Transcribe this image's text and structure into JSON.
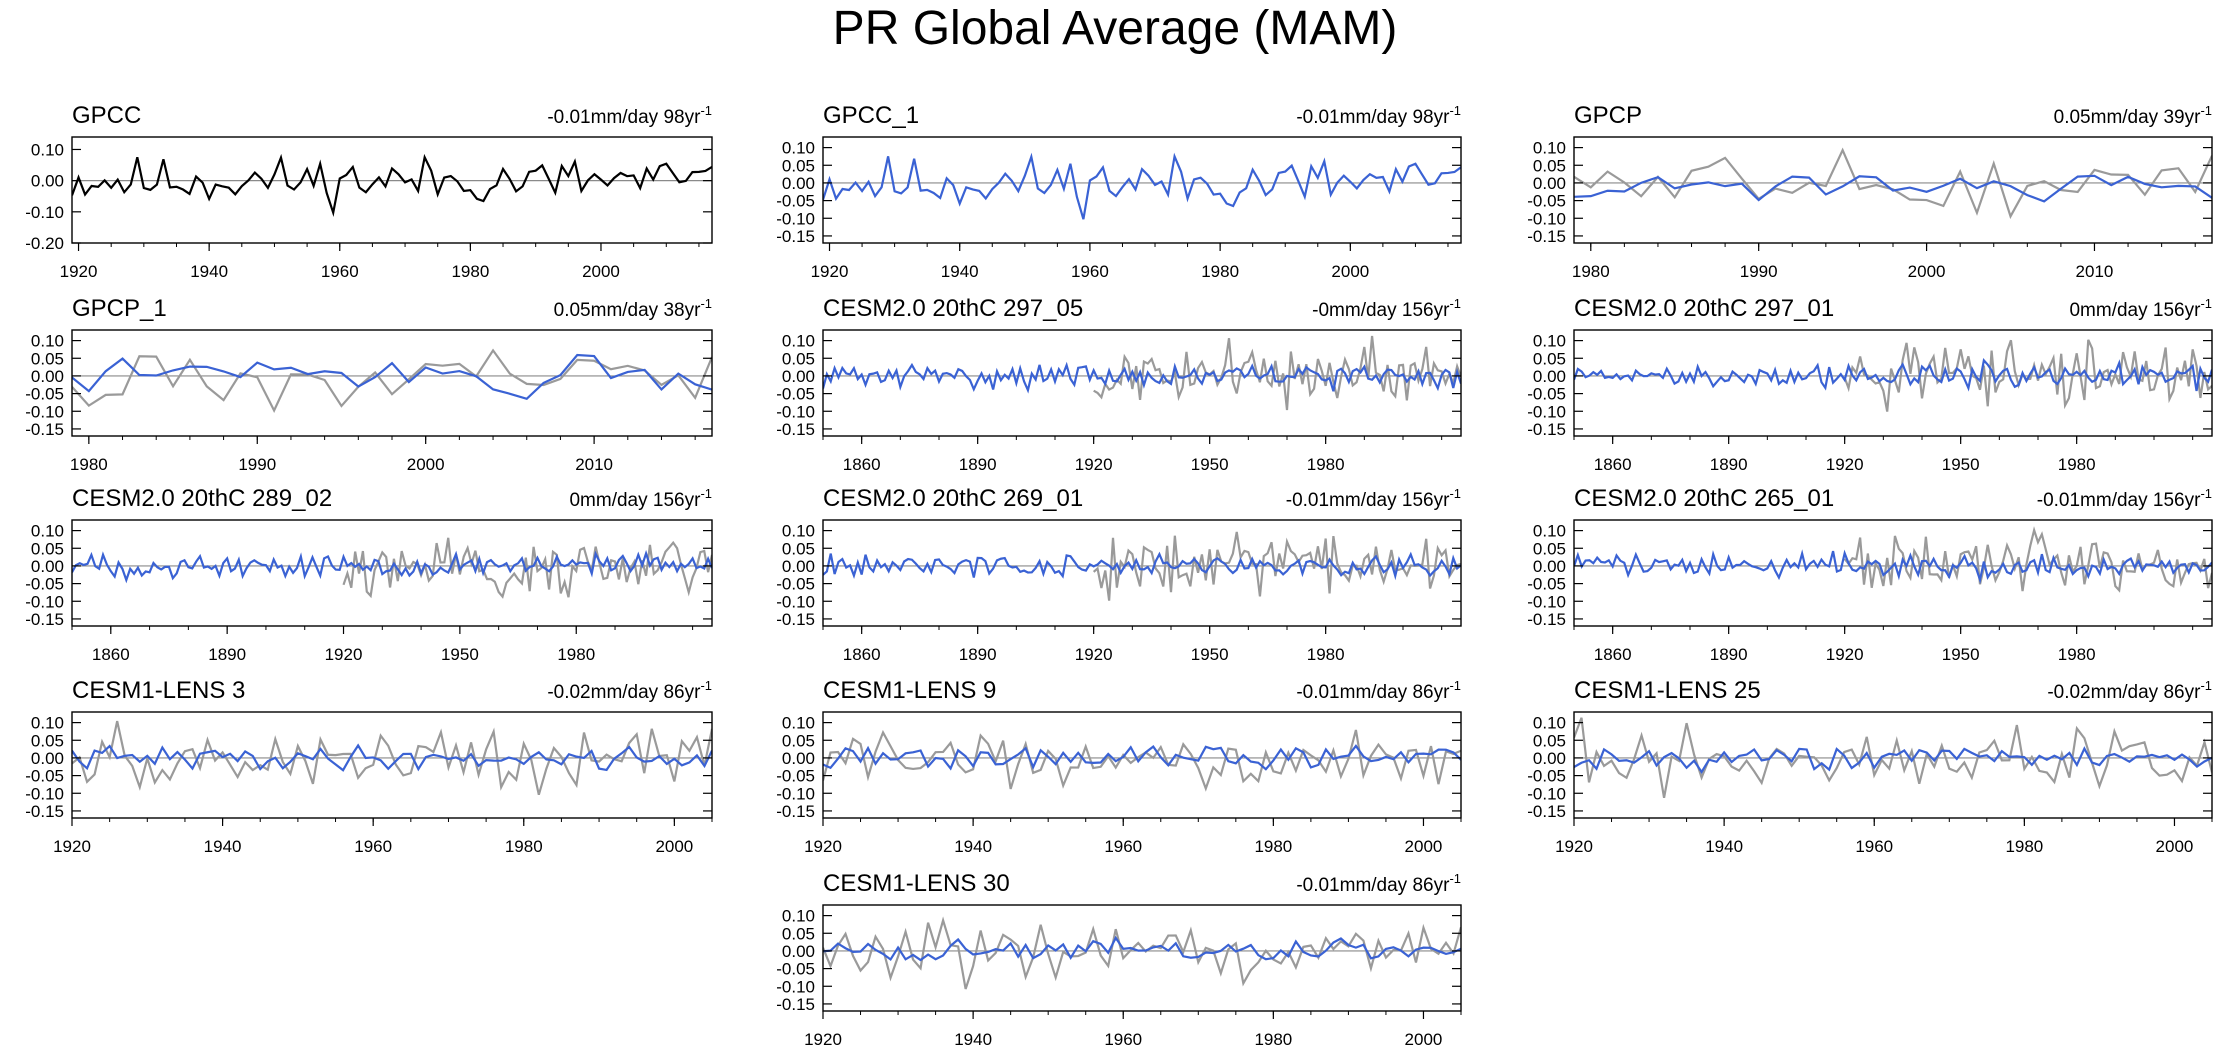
{
  "page_title": "PR Global Average (MAM)",
  "colors": {
    "model": "#3a62d4",
    "obs": "#9a9a9a",
    "gpcc": "#000000",
    "zero": "#8a8a8a",
    "axis": "#000000"
  },
  "chart_data": [
    {
      "type": "line",
      "title": "GPCC",
      "trend": "-0.01mm/day 98yr",
      "trend_exp": "-1",
      "xlim": [
        1919,
        2017
      ],
      "ylim": [
        -0.2,
        0.14
      ],
      "yticks": [
        -0.2,
        -0.1,
        0.0,
        0.1
      ],
      "ytick_labels": [
        "-0.20",
        "-0.10",
        "0.00",
        "0.10"
      ],
      "xticks": [
        1920,
        1940,
        1960,
        1980,
        2000
      ],
      "xtick_labels": [
        "1920",
        "1940",
        "1960",
        "1980",
        "2000"
      ],
      "main_color": "gpcc",
      "has_obs": false,
      "seed": 11
    },
    {
      "type": "line",
      "title": "GPCC_1",
      "trend": "-0.01mm/day 98yr",
      "trend_exp": "-1",
      "xlim": [
        1919,
        2017
      ],
      "ylim": [
        -0.17,
        0.13
      ],
      "yticks": [
        -0.15,
        -0.1,
        -0.05,
        0.0,
        0.05,
        0.1
      ],
      "ytick_labels": [
        "-0.15",
        "-0.10",
        "-0.05",
        "0.00",
        "0.05",
        "0.10"
      ],
      "xticks": [
        1920,
        1940,
        1960,
        1980,
        2000
      ],
      "xtick_labels": [
        "1920",
        "1940",
        "1960",
        "1980",
        "2000"
      ],
      "main_color": "model",
      "has_obs": false,
      "seed": 11
    },
    {
      "type": "line",
      "title": "GPCP",
      "trend": "0.05mm/day 39yr",
      "trend_exp": "-1",
      "xlim": [
        1979,
        2017
      ],
      "ylim": [
        -0.17,
        0.13
      ],
      "yticks": [
        -0.15,
        -0.1,
        -0.05,
        0.0,
        0.05,
        0.1
      ],
      "ytick_labels": [
        "-0.15",
        "-0.10",
        "-0.05",
        "0.00",
        "0.05",
        "0.10"
      ],
      "xticks": [
        1980,
        1990,
        2000,
        2010
      ],
      "xtick_labels": [
        "1980",
        "1990",
        "2000",
        "2010"
      ],
      "main_color": "model",
      "has_obs": true,
      "smooth": true,
      "seed": 21
    },
    {
      "type": "line",
      "title": "GPCP_1",
      "trend": "0.05mm/day 38yr",
      "trend_exp": "-1",
      "xlim": [
        1979,
        2017
      ],
      "ylim": [
        -0.17,
        0.13
      ],
      "yticks": [
        -0.15,
        -0.1,
        -0.05,
        0.0,
        0.05,
        0.1
      ],
      "ytick_labels": [
        "-0.15",
        "-0.10",
        "-0.05",
        "0.00",
        "0.05",
        "0.10"
      ],
      "xticks": [
        1980,
        1990,
        2000,
        2010
      ],
      "xtick_labels": [
        "1980",
        "1990",
        "2000",
        "2010"
      ],
      "main_color": "model",
      "has_obs": true,
      "smooth": true,
      "seed": 22
    },
    {
      "type": "line",
      "title": "CESM2.0 20thC 297_05",
      "trend": "-0mm/day 156yr",
      "trend_exp": "-1",
      "xlim": [
        1850,
        2015
      ],
      "ylim": [
        -0.17,
        0.13
      ],
      "yticks": [
        -0.15,
        -0.1,
        -0.05,
        0.0,
        0.05,
        0.1
      ],
      "ytick_labels": [
        "-0.15",
        "-0.10",
        "-0.05",
        "0.00",
        "0.05",
        "0.10"
      ],
      "xticks": [
        1860,
        1890,
        1920,
        1950,
        1980
      ],
      "xtick_labels": [
        "1860",
        "1890",
        "1920",
        "1950",
        "1980"
      ],
      "main_color": "model",
      "has_obs": true,
      "obs_start": 1920,
      "seed": 31
    },
    {
      "type": "line",
      "title": "CESM2.0 20thC 297_01",
      "trend": "0mm/day 156yr",
      "trend_exp": "-1",
      "xlim": [
        1850,
        2015
      ],
      "ylim": [
        -0.17,
        0.13
      ],
      "yticks": [
        -0.15,
        -0.1,
        -0.05,
        0.0,
        0.05,
        0.1
      ],
      "ytick_labels": [
        "-0.15",
        "-0.10",
        "-0.05",
        "0.00",
        "0.05",
        "0.10"
      ],
      "xticks": [
        1860,
        1890,
        1920,
        1950,
        1980
      ],
      "xtick_labels": [
        "1860",
        "1890",
        "1920",
        "1950",
        "1980"
      ],
      "main_color": "model",
      "has_obs": true,
      "obs_start": 1920,
      "seed": 32
    },
    {
      "type": "line",
      "title": "CESM2.0 20thC 289_02",
      "trend": "0mm/day 156yr",
      "trend_exp": "-1",
      "xlim": [
        1850,
        2015
      ],
      "ylim": [
        -0.17,
        0.13
      ],
      "yticks": [
        -0.15,
        -0.1,
        -0.05,
        0.0,
        0.05,
        0.1
      ],
      "ytick_labels": [
        "-0.15",
        "-0.10",
        "-0.05",
        "0.00",
        "0.05",
        "0.10"
      ],
      "xticks": [
        1860,
        1890,
        1920,
        1950,
        1980
      ],
      "xtick_labels": [
        "1860",
        "1890",
        "1920",
        "1950",
        "1980"
      ],
      "main_color": "model",
      "has_obs": true,
      "obs_start": 1920,
      "seed": 33
    },
    {
      "type": "line",
      "title": "CESM2.0 20thC 269_01",
      "trend": "-0.01mm/day 156yr",
      "trend_exp": "-1",
      "xlim": [
        1850,
        2015
      ],
      "ylim": [
        -0.17,
        0.13
      ],
      "yticks": [
        -0.15,
        -0.1,
        -0.05,
        0.0,
        0.05,
        0.1
      ],
      "ytick_labels": [
        "-0.15",
        "-0.10",
        "-0.05",
        "0.00",
        "0.05",
        "0.10"
      ],
      "xticks": [
        1860,
        1890,
        1920,
        1950,
        1980
      ],
      "xtick_labels": [
        "1860",
        "1890",
        "1920",
        "1950",
        "1980"
      ],
      "main_color": "model",
      "has_obs": true,
      "obs_start": 1920,
      "seed": 34
    },
    {
      "type": "line",
      "title": "CESM2.0 20thC 265_01",
      "trend": "-0.01mm/day 156yr",
      "trend_exp": "-1",
      "xlim": [
        1850,
        2015
      ],
      "ylim": [
        -0.17,
        0.13
      ],
      "yticks": [
        -0.15,
        -0.1,
        -0.05,
        0.0,
        0.05,
        0.1
      ],
      "ytick_labels": [
        "-0.15",
        "-0.10",
        "-0.05",
        "0.00",
        "0.05",
        "0.10"
      ],
      "xticks": [
        1860,
        1890,
        1920,
        1950,
        1980
      ],
      "xtick_labels": [
        "1860",
        "1890",
        "1920",
        "1950",
        "1980"
      ],
      "main_color": "model",
      "has_obs": true,
      "obs_start": 1920,
      "seed": 35
    },
    {
      "type": "line",
      "title": "CESM1-LENS 3",
      "trend": "-0.02mm/day 86yr",
      "trend_exp": "-1",
      "xlim": [
        1920,
        2005
      ],
      "ylim": [
        -0.17,
        0.13
      ],
      "yticks": [
        -0.15,
        -0.1,
        -0.05,
        0.0,
        0.05,
        0.1
      ],
      "ytick_labels": [
        "-0.15",
        "-0.10",
        "-0.05",
        "0.00",
        "0.05",
        "0.10"
      ],
      "xticks": [
        1920,
        1940,
        1960,
        1980,
        2000
      ],
      "xtick_labels": [
        "1920",
        "1940",
        "1960",
        "1980",
        "2000"
      ],
      "main_color": "model",
      "has_obs": true,
      "seed": 41
    },
    {
      "type": "line",
      "title": "CESM1-LENS 9",
      "trend": "-0.01mm/day 86yr",
      "trend_exp": "-1",
      "xlim": [
        1920,
        2005
      ],
      "ylim": [
        -0.17,
        0.13
      ],
      "yticks": [
        -0.15,
        -0.1,
        -0.05,
        0.0,
        0.05,
        0.1
      ],
      "ytick_labels": [
        "-0.15",
        "-0.10",
        "-0.05",
        "0.00",
        "0.05",
        "0.10"
      ],
      "xticks": [
        1920,
        1940,
        1960,
        1980,
        2000
      ],
      "xtick_labels": [
        "1920",
        "1940",
        "1960",
        "1980",
        "2000"
      ],
      "main_color": "model",
      "has_obs": true,
      "seed": 42
    },
    {
      "type": "line",
      "title": "CESM1-LENS 25",
      "trend": "-0.02mm/day 86yr",
      "trend_exp": "-1",
      "xlim": [
        1920,
        2005
      ],
      "ylim": [
        -0.17,
        0.13
      ],
      "yticks": [
        -0.15,
        -0.1,
        -0.05,
        0.0,
        0.05,
        0.1
      ],
      "ytick_labels": [
        "-0.15",
        "-0.10",
        "-0.05",
        "0.00",
        "0.05",
        "0.10"
      ],
      "xticks": [
        1920,
        1940,
        1960,
        1980,
        2000
      ],
      "xtick_labels": [
        "1920",
        "1940",
        "1960",
        "1980",
        "2000"
      ],
      "main_color": "model",
      "has_obs": true,
      "seed": 43
    },
    {
      "type": "line",
      "title": "CESM1-LENS 30",
      "trend": "-0.01mm/day 86yr",
      "trend_exp": "-1",
      "xlim": [
        1920,
        2005
      ],
      "ylim": [
        -0.17,
        0.13
      ],
      "yticks": [
        -0.15,
        -0.1,
        -0.05,
        0.0,
        0.05,
        0.1
      ],
      "ytick_labels": [
        "-0.15",
        "-0.10",
        "-0.05",
        "0.00",
        "0.05",
        "0.10"
      ],
      "xticks": [
        1920,
        1940,
        1960,
        1980,
        2000
      ],
      "xtick_labels": [
        "1920",
        "1940",
        "1960",
        "1980",
        "2000"
      ],
      "main_color": "model",
      "has_obs": true,
      "seed": 44
    }
  ]
}
